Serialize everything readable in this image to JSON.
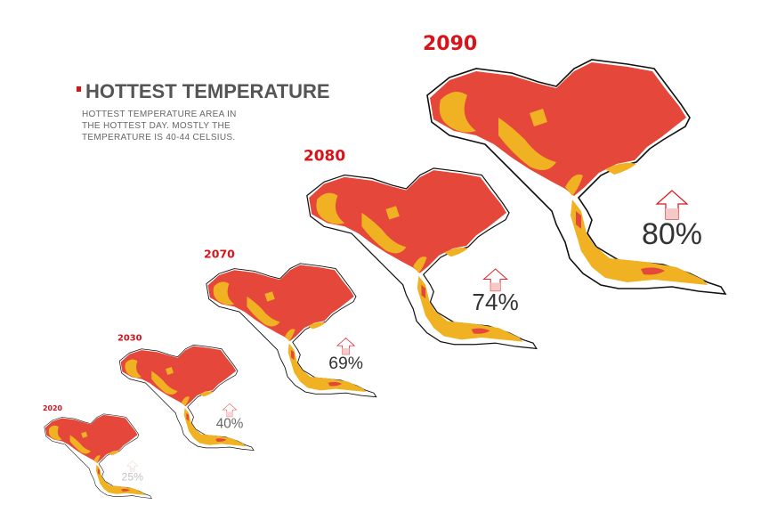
{
  "header": {
    "title": "HOTTEST TEMPERATURE",
    "description": [
      "HOTTEST TEMPERATURE AREA IN",
      "THE HOTTEST DAY. MOSTLY THE",
      "TEMPERATURE IS 40-44 CELSIUS."
    ]
  },
  "maps": [
    {
      "year": "2020",
      "label": "25%"
    },
    {
      "year": "2030",
      "label": "40%"
    },
    {
      "year": "2070",
      "label": "69%"
    },
    {
      "year": "2080",
      "label": "74%"
    },
    {
      "year": "2090",
      "label": "80%"
    }
  ]
}
